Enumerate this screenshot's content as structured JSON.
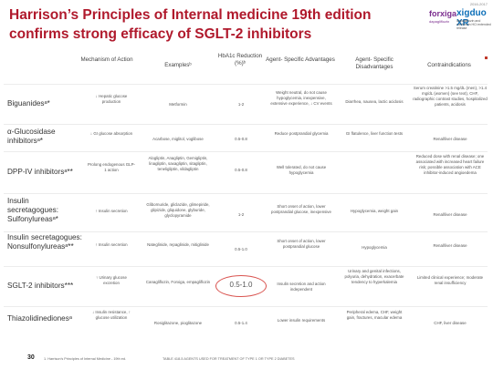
{
  "slide": {
    "title": "Harrison’s Principles of Internal medicine 19th edition confirms strong efficacy of SGLT-2 inhibitors"
  },
  "logo": {
    "date": "2016-2017",
    "forxiga": "forxiga",
    "xigduo": "xigduo XR",
    "sub_forxiga": "dapagliflozin",
    "sub_xigduo": "dapagliflozin and metformin HCl extended release"
  },
  "headers": {
    "mechanism": "Mechanism of Action",
    "examples": "Examplesᵇ",
    "hba1c": "HbA1c Reduction (%)ᵇ",
    "advantages": "Agent- Specific Advantages",
    "disadvantages": "Agent- Specific Disadvantages",
    "contraindications": "Contraindications"
  },
  "rows": [
    {
      "drug": "Biguanidesᵃ*",
      "mechanism": "↓ Hepatic glucose production",
      "examples": "Metformin",
      "reduction": "1-2",
      "advantages": "Weight neutral, do not cause hypoglycemia, inexpensive, extensive experience, ↓ CV events",
      "disadvantages": "Diarrhea, nausea, lactic acidosis",
      "contraindications": "Serum creatinine >1.5 mg/dL (men), >1.4 mg/dL (women) (see text), CHF, radiographic contrast studies, hospitalized patients, acidosis"
    },
    {
      "drug": "α-Glucosidase inhibitorsᵃ*",
      "mechanism": "↓ GI glucose absorption",
      "examples": "Acarbose, miglitol, voglibose",
      "reduction": "0.5-0.8",
      "advantages": "Reduce postprandial glycemia",
      "disadvantages": "GI flatulence, liver function tests",
      "contraindications": "Renal/liver disease"
    },
    {
      "drug": "DPP-IV inhibitorsᵃ**",
      "mechanism": "Prolong endogenous GLP-1 action",
      "examples": "Alogliptin, Anagliptin, Gemigliptin, linagliptin, saxagliptin, sitagliptin, teneligliptin, vildagliptin",
      "reduction": "0.5-0.8",
      "advantages": "Well tolerated, do not cause hypoglycemia",
      "disadvantages": "",
      "contraindications": "Reduced dose with renal disease; one associated with increased heart failure risk; possible association with ACE inhibitor-induced angioedema"
    },
    {
      "drug": "Insulin secretagogues: Sulfonylureasᵃ*",
      "mechanism": "↑ Insulin secretion",
      "examples": "Glibornuride, gliclazide, glimepiride, glipizide, gliquidone, glyburide, glyclopyramide",
      "reduction": "1-2",
      "advantages": "Short onset of action, lower postprandial glucose, inexpensive",
      "disadvantages": "Hypoglycemia, weight gain",
      "contraindications": "Renal/liver disease"
    },
    {
      "drug": "Insulin secretagogues: Nonsulfonylureasᵃ**",
      "mechanism": "↑ Insulin secretion",
      "examples": "Nateglinide, repaglinide, mitiglinide",
      "reduction": "0.5-1.0",
      "advantages": "Short onset of action, lower postprandial glucose",
      "disadvantages": "Hypoglycemia",
      "contraindications": "Renal/liver disease"
    },
    {
      "drug": "SGLT-2 inhibitors***",
      "mechanism": "↑ Urinary glucose excretion",
      "examples": "Canagliflozin, Forxiga, empagliflozin",
      "reduction": "0.5-1.0",
      "advantages": "Insulin secretion and action independent",
      "disadvantages": "Urinary and genital infections, polyuria, dehydration, exacerbate tendency to hyperkalemia",
      "contraindications": "Limited clinical experience; moderate renal insufficiency"
    },
    {
      "drug": "Thiazolidinedionesᵃ",
      "mechanism": "↓ Insulin resistance, ↑ glucose utilization",
      "examples": "Rosiglitazone, pioglitazone",
      "reduction": "0.5-1.4",
      "advantages": "Lower insulin requirements",
      "disadvantages": "Peripheral edema, CHF, weight gain, fractures, macular edema",
      "contraindications": "CHF, liver disease"
    }
  ],
  "footer": {
    "page": "30",
    "source": "1. Harrison’s Principles of Internal Medicine - 19th ed.",
    "table": "TABLE 418-5 AGENTS USED FOR TREATMENT OF TYPE 1 OR TYPE 2 DIABETES"
  }
}
